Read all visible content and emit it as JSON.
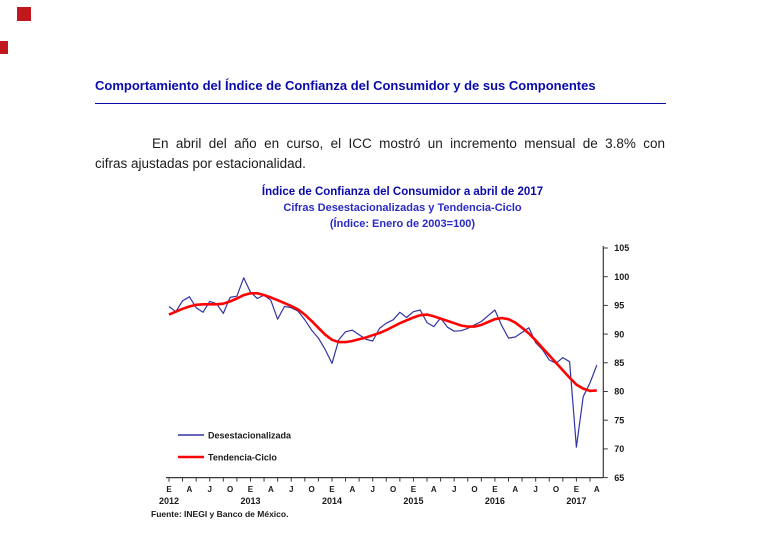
{
  "page": {
    "heading": "Comportamiento del Índice de Confianza del Consumidor y de sus Componentes",
    "heading_color": "#0a0aab",
    "subtitle_color": "#2b2bc4",
    "accent_red": "#c0181c",
    "paragraph_line1": "En abril del año en curso, el ICC mostró un incremento mensual de 3.8% con",
    "paragraph_line2": "cifras ajustadas por estacionalidad.",
    "source_note": "Fuente: INEGI y Banco de México."
  },
  "chart_data": {
    "type": "line",
    "title": "Índice de Confianza del Consumidor a abril de 2017",
    "subtitle": "Cifras Desestacionalizadas y Tendencia-Ciclo",
    "index_note": "(Índice: Enero de 2003=100)",
    "x_start": "Enero 2012",
    "x_end": "Abril 2017",
    "month_labels": [
      "E",
      "A",
      "J",
      "O"
    ],
    "years": [
      "2012",
      "2013",
      "2014",
      "2015",
      "2016",
      "2017"
    ],
    "x_label_interval_months": 3,
    "x_tick_interval_months": 2,
    "ylim": [
      65,
      105
    ],
    "ytick_step": 5,
    "y_axis_side": "right",
    "grid": false,
    "legend_position": "inside-bottom-left",
    "axis_color": "#3a3a3a",
    "series": [
      {
        "name": "Desestacionalizada",
        "color": "#3434a4",
        "stroke_width": 1.2,
        "values": [
          94.8,
          93.9,
          95.8,
          96.5,
          94.6,
          93.8,
          95.7,
          95.3,
          93.6,
          96.4,
          96.6,
          99.8,
          97.3,
          96.2,
          96.8,
          95.9,
          92.6,
          94.8,
          94.6,
          94.0,
          92.5,
          90.7,
          89.3,
          87.3,
          84.9,
          89.0,
          90.4,
          90.7,
          89.9,
          89.1,
          88.8,
          91.0,
          91.9,
          92.5,
          93.8,
          92.9,
          93.9,
          94.2,
          92.0,
          91.3,
          92.8,
          91.2,
          90.5,
          90.6,
          91.0,
          91.6,
          92.2,
          93.2,
          94.2,
          91.5,
          89.3,
          89.5,
          90.3,
          91.1,
          88.5,
          87.3,
          85.5,
          84.9,
          85.9,
          85.2,
          70.3,
          79.1,
          81.5,
          84.6
        ]
      },
      {
        "name": "Tendencia-Ciclo",
        "color": "#fe0202",
        "stroke_width": 2.6,
        "values": [
          93.4,
          93.9,
          94.4,
          94.8,
          95.1,
          95.2,
          95.2,
          95.2,
          95.3,
          95.7,
          96.2,
          96.8,
          97.1,
          97.1,
          96.8,
          96.4,
          95.9,
          95.4,
          94.9,
          94.3,
          93.4,
          92.3,
          91.1,
          89.9,
          89.0,
          88.6,
          88.6,
          88.8,
          89.1,
          89.4,
          89.8,
          90.2,
          90.7,
          91.3,
          91.9,
          92.4,
          92.9,
          93.3,
          93.4,
          93.1,
          92.7,
          92.3,
          91.9,
          91.5,
          91.3,
          91.3,
          91.6,
          92.1,
          92.6,
          92.8,
          92.6,
          92.0,
          91.1,
          90.1,
          88.9,
          87.6,
          86.3,
          85.0,
          83.7,
          82.4,
          81.2,
          80.5,
          80.1,
          80.2
        ]
      }
    ]
  }
}
